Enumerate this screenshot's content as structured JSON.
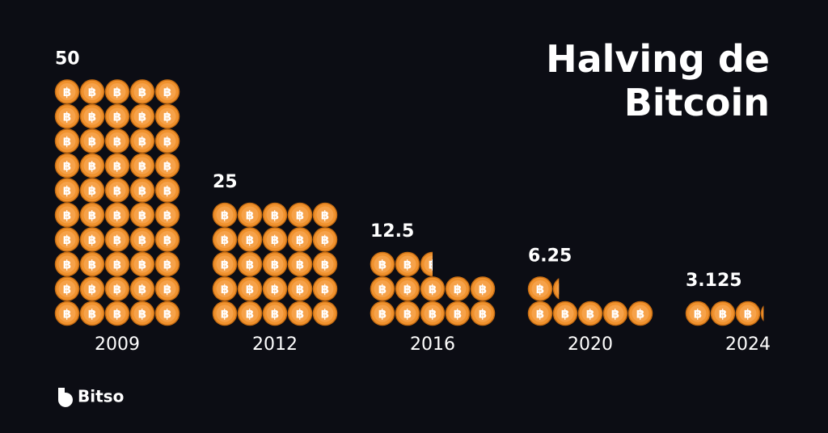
{
  "chart_data": {
    "type": "pictogram",
    "title": "Halving de Bitcoin",
    "categories": [
      "2009",
      "2012",
      "2016",
      "2020",
      "2024"
    ],
    "values": [
      50,
      25,
      12.5,
      6.25,
      3.125
    ],
    "color": "#f0922e"
  },
  "brand": "Bitso"
}
